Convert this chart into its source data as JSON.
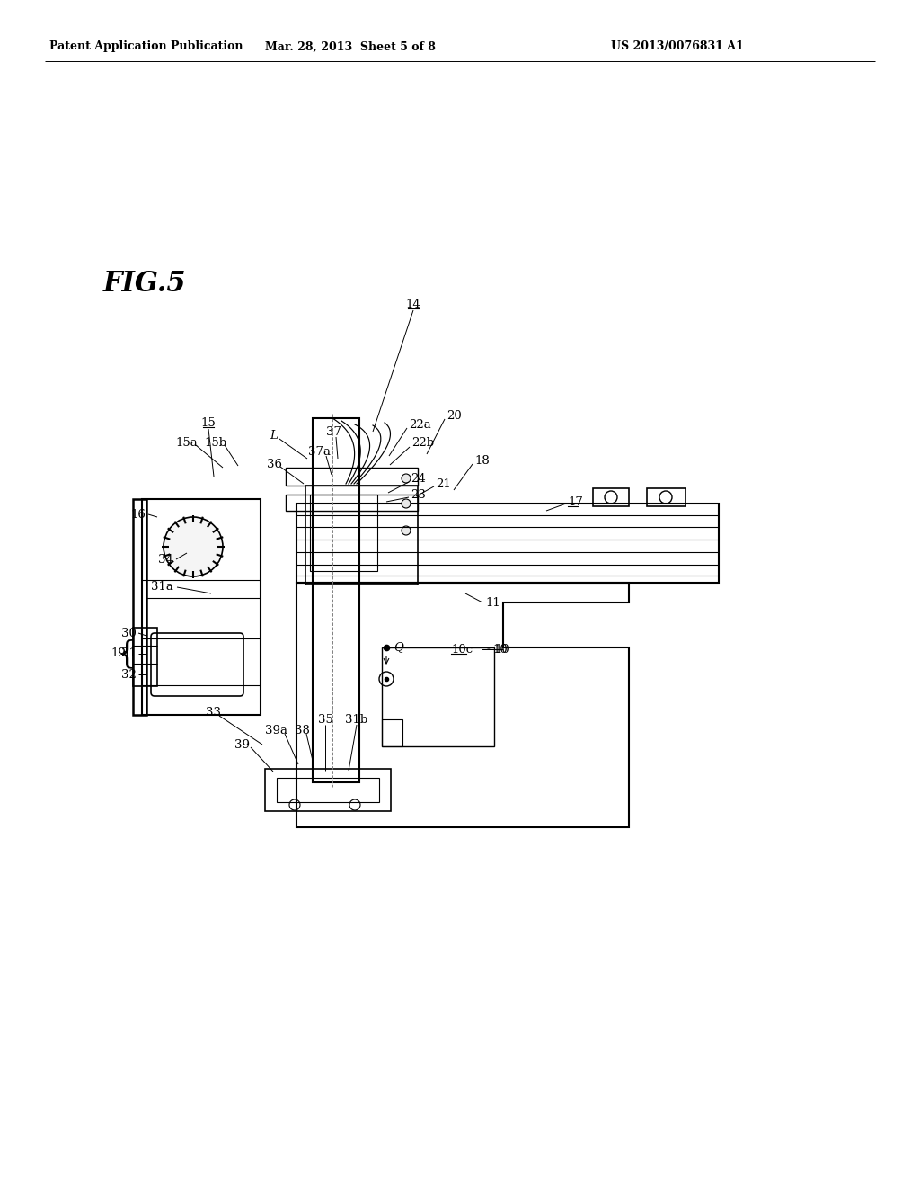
{
  "bg_color": "#ffffff",
  "header_left": "Patent Application Publication",
  "header_mid": "Mar. 28, 2013  Sheet 5 of 8",
  "header_right": "US 2013/0076831 A1",
  "fig_label": "FIG.5",
  "lfs": 9.5
}
